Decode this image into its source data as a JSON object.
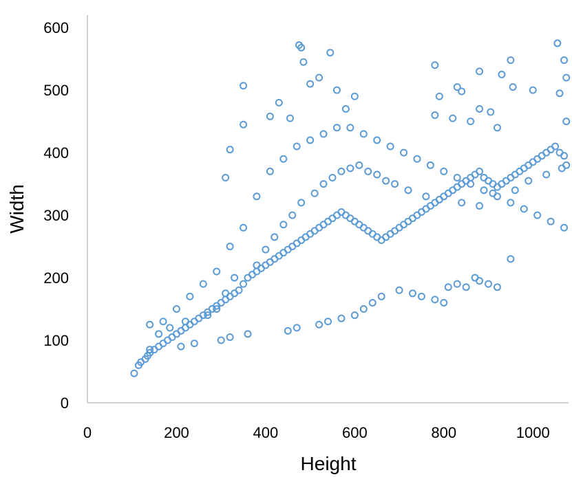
{
  "chart_data": {
    "type": "scatter",
    "title": "",
    "xlabel": "Height",
    "ylabel": "Width",
    "xlim": [
      0,
      1080
    ],
    "ylim": [
      0,
      620
    ],
    "xticks": [
      0,
      200,
      400,
      600,
      800,
      1000
    ],
    "yticks": [
      0,
      100,
      200,
      300,
      400,
      500,
      600
    ],
    "x_tick_labels": [
      "0",
      "200",
      "400",
      "600",
      "800",
      "1000"
    ],
    "y_tick_labels": [
      "0",
      "100",
      "200",
      "300",
      "400",
      "500",
      "600"
    ],
    "grid": false,
    "legend": "none",
    "marker": "open-circle",
    "color": "#5b9bd5",
    "series": [
      {
        "x": [
          105,
          115,
          120,
          130,
          135,
          140,
          150,
          160,
          170,
          180,
          190,
          200,
          210,
          220,
          230,
          240,
          250,
          260,
          270,
          280,
          290,
          300,
          310,
          320,
          330,
          340,
          350,
          360,
          370,
          380,
          390,
          400,
          410,
          420,
          430,
          440,
          450,
          460,
          470,
          480,
          490,
          500,
          510,
          520,
          530,
          540,
          550,
          560,
          570,
          580,
          590,
          600,
          610,
          620,
          630,
          640,
          650,
          660,
          670,
          680,
          690,
          700,
          710,
          720,
          730,
          740,
          750,
          760,
          770,
          780,
          790,
          800,
          810,
          820,
          830,
          840,
          850,
          860,
          870,
          880,
          890,
          900,
          910,
          920,
          930,
          940,
          950,
          960,
          970,
          980,
          990,
          1000,
          1010,
          1020,
          1030,
          1040,
          1050,
          1060,
          1070,
          1075,
          140,
          170,
          200,
          230,
          260,
          290,
          320,
          350,
          380,
          410,
          440,
          470,
          500,
          530,
          560,
          590,
          620,
          650,
          680,
          710,
          740,
          770,
          800,
          830,
          860,
          890,
          920,
          950,
          980,
          1010,
          1040,
          1070,
          475,
          480,
          485,
          545,
          350,
          350,
          430,
          560,
          580,
          600,
          520,
          500,
          455,
          410,
          320,
          310,
          780,
          830,
          840,
          880,
          930,
          950,
          955,
          1055,
          1070,
          1075,
          880,
          905,
          780,
          790,
          820,
          860,
          920,
          1000,
          1060,
          1075,
          140,
          210,
          240,
          300,
          320,
          360,
          450,
          470,
          520,
          540,
          570,
          600,
          620,
          640,
          660,
          700,
          730,
          750,
          780,
          800,
          810,
          830,
          850,
          870,
          880,
          900,
          920,
          950,
          160,
          185,
          220,
          270,
          290,
          310,
          330,
          380,
          400,
          420,
          440,
          460,
          480,
          510,
          530,
          550,
          570,
          590,
          610,
          630,
          650,
          670,
          690,
          720,
          760,
          790,
          840,
          880,
          910,
          960,
          990,
          1030,
          1065
        ],
        "y": [
          47,
          60,
          65,
          70,
          75,
          80,
          85,
          90,
          95,
          100,
          105,
          110,
          115,
          120,
          125,
          130,
          135,
          140,
          145,
          150,
          155,
          160,
          165,
          170,
          175,
          180,
          190,
          200,
          205,
          210,
          215,
          220,
          225,
          230,
          235,
          240,
          245,
          250,
          255,
          260,
          265,
          270,
          275,
          280,
          285,
          290,
          295,
          300,
          305,
          300,
          295,
          290,
          285,
          280,
          275,
          270,
          265,
          260,
          265,
          270,
          275,
          280,
          285,
          290,
          295,
          300,
          305,
          310,
          315,
          320,
          325,
          330,
          335,
          340,
          345,
          350,
          355,
          360,
          365,
          370,
          360,
          355,
          350,
          345,
          350,
          355,
          360,
          365,
          370,
          375,
          380,
          385,
          390,
          395,
          400,
          405,
          410,
          400,
          395,
          380,
          125,
          130,
          150,
          170,
          190,
          210,
          250,
          280,
          330,
          370,
          390,
          410,
          420,
          430,
          440,
          440,
          430,
          420,
          410,
          400,
          390,
          380,
          370,
          360,
          350,
          340,
          330,
          320,
          310,
          300,
          290,
          280,
          572,
          568,
          545,
          560,
          507,
          445,
          480,
          500,
          470,
          490,
          520,
          510,
          455,
          458,
          405,
          360,
          540,
          505,
          498,
          530,
          525,
          548,
          505,
          575,
          548,
          520,
          470,
          465,
          460,
          490,
          455,
          450,
          440,
          500,
          495,
          450,
          85,
          90,
          95,
          100,
          105,
          110,
          115,
          120,
          125,
          130,
          135,
          140,
          150,
          160,
          170,
          180,
          175,
          170,
          165,
          160,
          185,
          190,
          185,
          200,
          195,
          190,
          185,
          230,
          110,
          120,
          130,
          140,
          150,
          175,
          200,
          220,
          245,
          265,
          285,
          300,
          320,
          335,
          350,
          360,
          370,
          375,
          380,
          370,
          365,
          355,
          350,
          340,
          330,
          325,
          320,
          315,
          335,
          340,
          355,
          365,
          375
        ]
      }
    ]
  }
}
